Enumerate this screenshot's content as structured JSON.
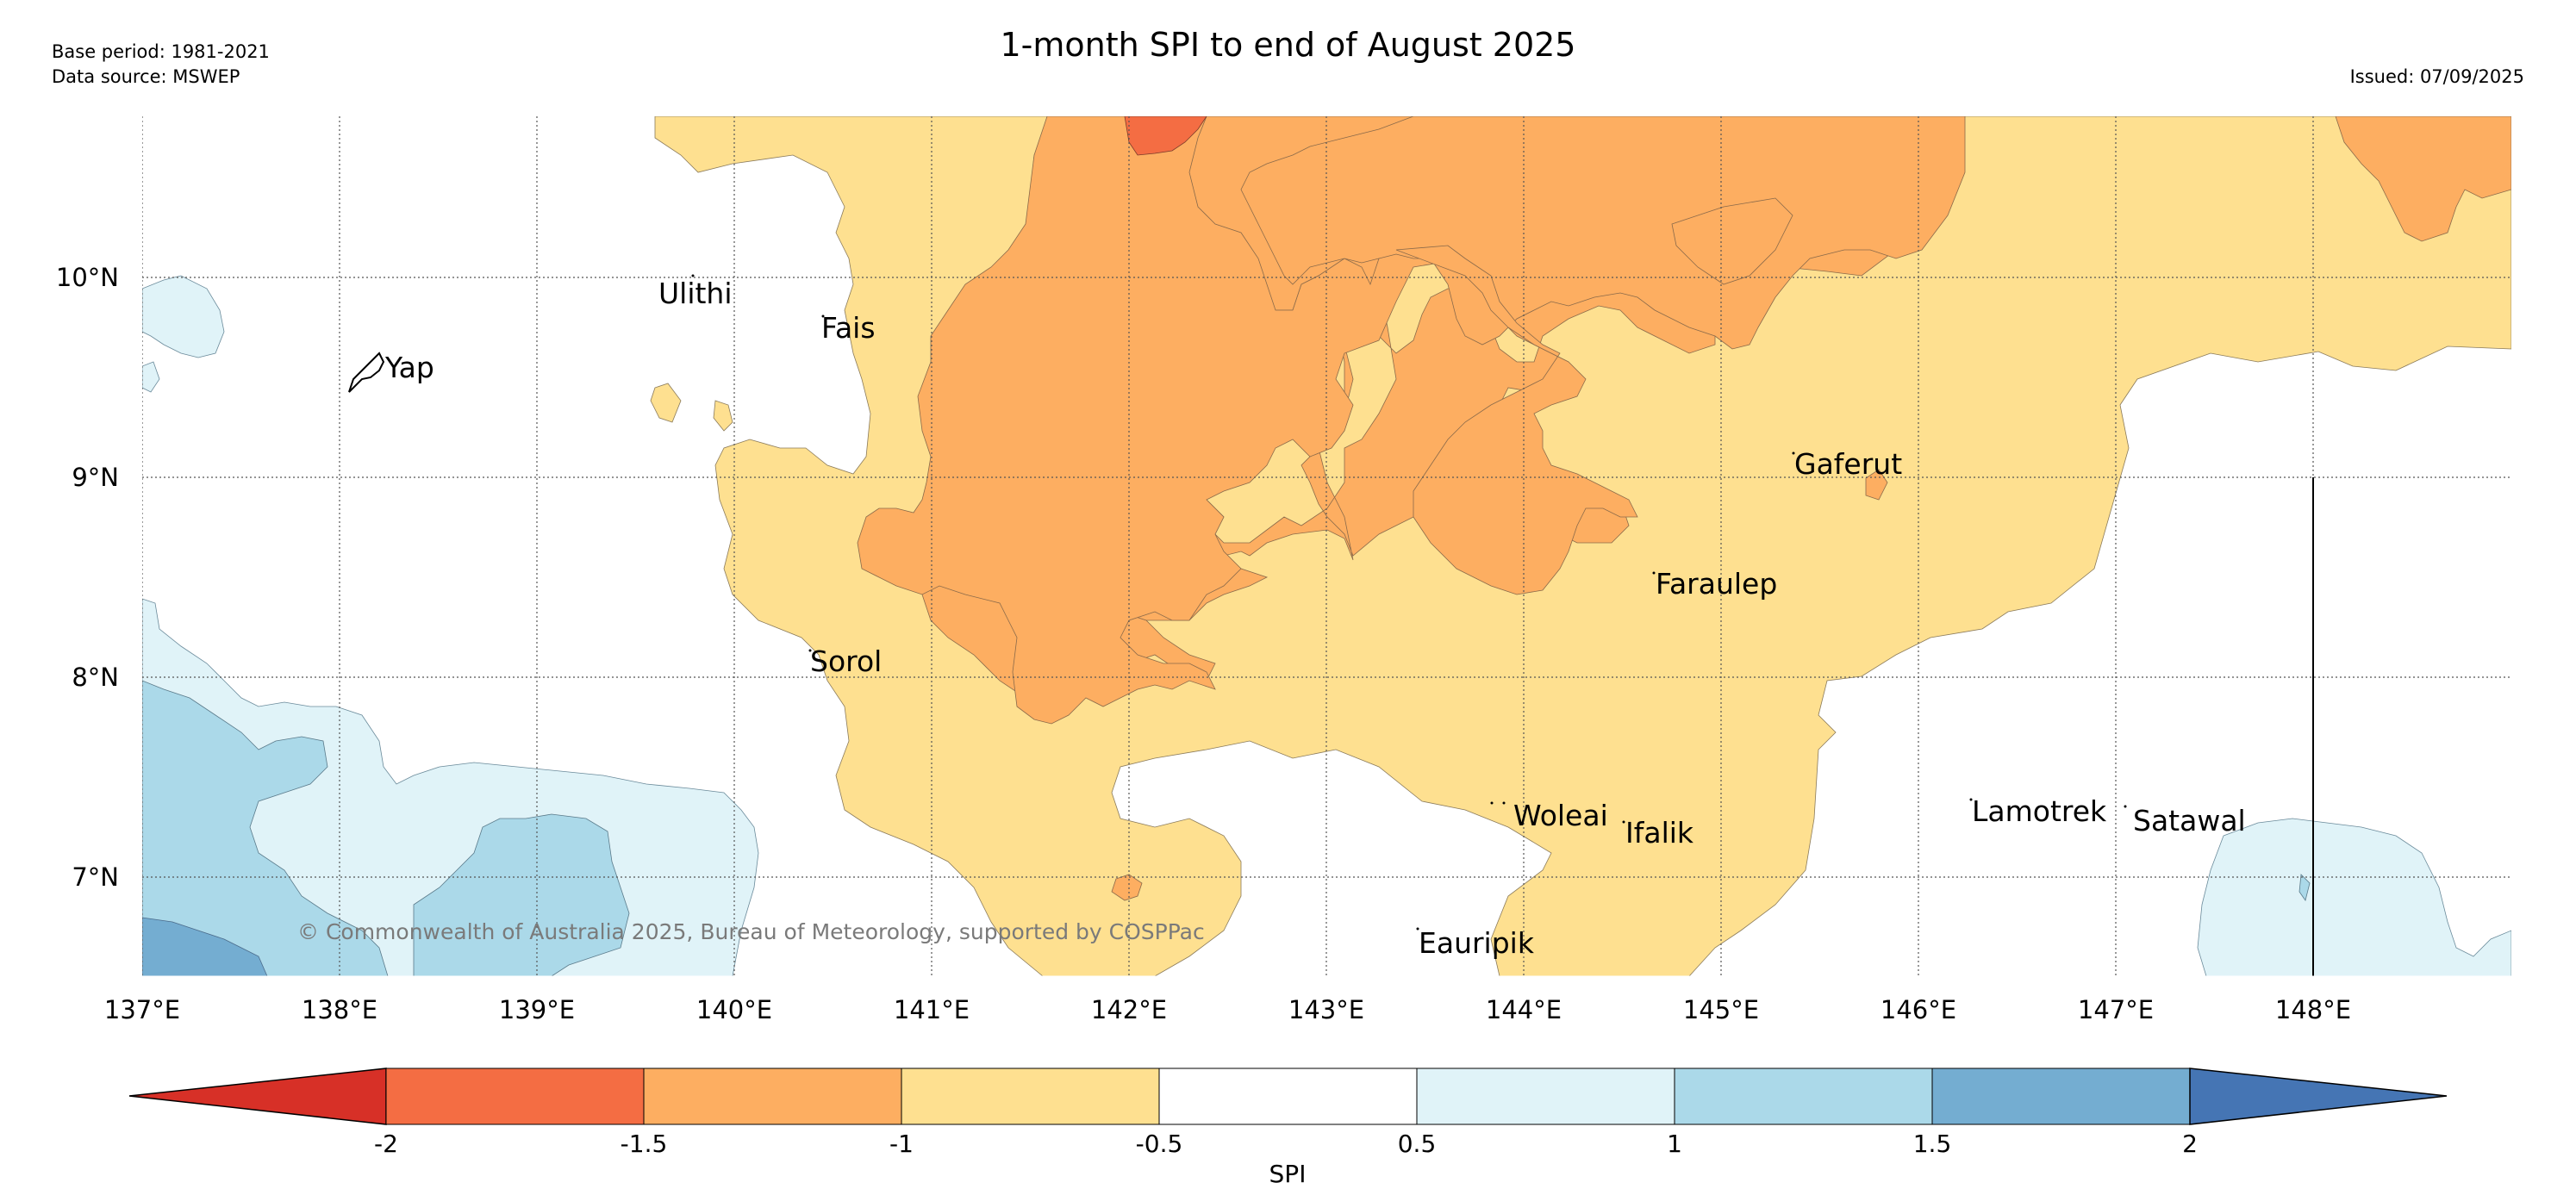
{
  "header": {
    "title": "1-month SPI to end of August 2025",
    "base_period": "Base period: 1981-2021",
    "data_source": "Data source: MSWEP",
    "issued": "Issued: 07/09/2025"
  },
  "map": {
    "lon_labels": [
      "137°E",
      "138°E",
      "139°E",
      "140°E",
      "141°E",
      "142°E",
      "143°E",
      "144°E",
      "145°E",
      "146°E",
      "147°E",
      "148°E"
    ],
    "lat_labels": [
      "10°N",
      "9°N",
      "8°N",
      "7°N"
    ],
    "places": [
      {
        "name": "Yap",
        "lon": 138.2,
        "lat": 9.5
      },
      {
        "name": "Ulithi",
        "lon": 139.72,
        "lat": 10.01
      },
      {
        "name": "Fais",
        "lon": 140.52,
        "lat": 9.78
      },
      {
        "name": "Sorol",
        "lon": 140.39,
        "lat": 8.14
      },
      {
        "name": "Gaferut",
        "lon": 145.38,
        "lat": 9.23
      },
      {
        "name": "Faraulep",
        "lon": 144.7,
        "lat": 8.6
      },
      {
        "name": "Woleai",
        "lon": 143.91,
        "lat": 7.37
      },
      {
        "name": "Ifalik",
        "lon": 144.45,
        "lat": 7.25
      },
      {
        "name": "Lamotrek",
        "lon": 146.33,
        "lat": 7.47
      },
      {
        "name": "Satawal",
        "lon": 147.04,
        "lat": 7.37
      },
      {
        "name": "Eauripik",
        "lon": 143.45,
        "lat": 6.69
      }
    ],
    "copyright": "© Commonwealth of Australia 2025, Bureau of Meteorology, supported by COSPPac"
  },
  "legend": {
    "title": "SPI",
    "tick_labels": [
      "-2",
      "-1.5",
      "-1",
      "-0.5",
      "0.5",
      "1",
      "1.5",
      "2"
    ],
    "colors": [
      "#d73027",
      "#f46d43",
      "#fdae61",
      "#fee090",
      "#ffffff",
      "#e0f3f8",
      "#abd9e9",
      "#74add1",
      "#4575b4"
    ]
  }
}
